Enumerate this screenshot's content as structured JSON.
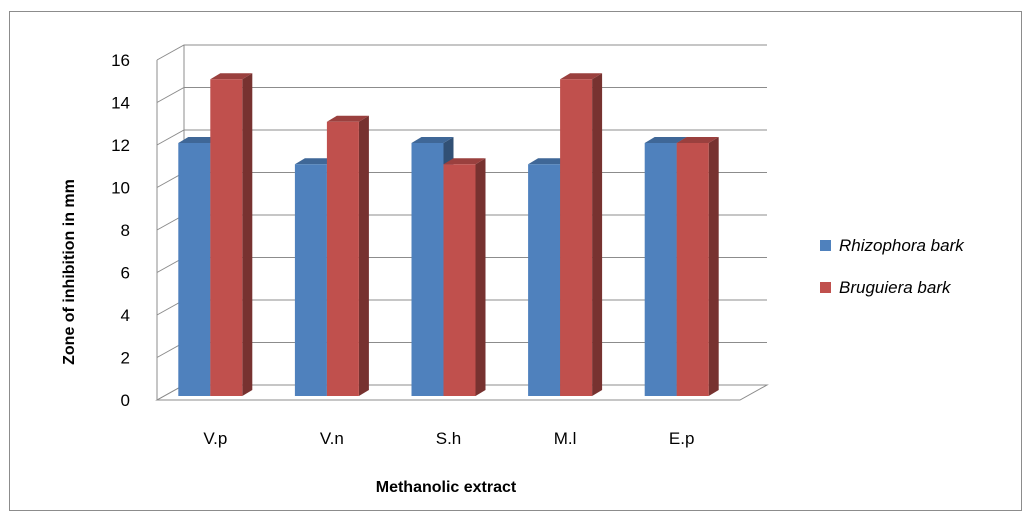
{
  "chart_data": {
    "type": "bar",
    "style": "3d-clustered-column",
    "categories": [
      "V.p",
      "V.n",
      "S.h",
      "M.l",
      "E.p"
    ],
    "series": [
      {
        "name": "Rhizophora bark",
        "values": [
          12,
          11,
          12,
          11,
          12
        ],
        "color": "#4f81bd"
      },
      {
        "name": "Bruguiera bark",
        "values": [
          15,
          13,
          11,
          15,
          12
        ],
        "color": "#c0504d"
      }
    ],
    "xlabel": "Methanolic extract",
    "ylabel": "Zone of  inhibition in mm",
    "ylim": [
      0,
      16
    ],
    "yticks": [
      "0",
      "2",
      "4",
      "6",
      "8",
      "10",
      "12",
      "14",
      "16"
    ],
    "grid": true,
    "legend_position": "right"
  }
}
